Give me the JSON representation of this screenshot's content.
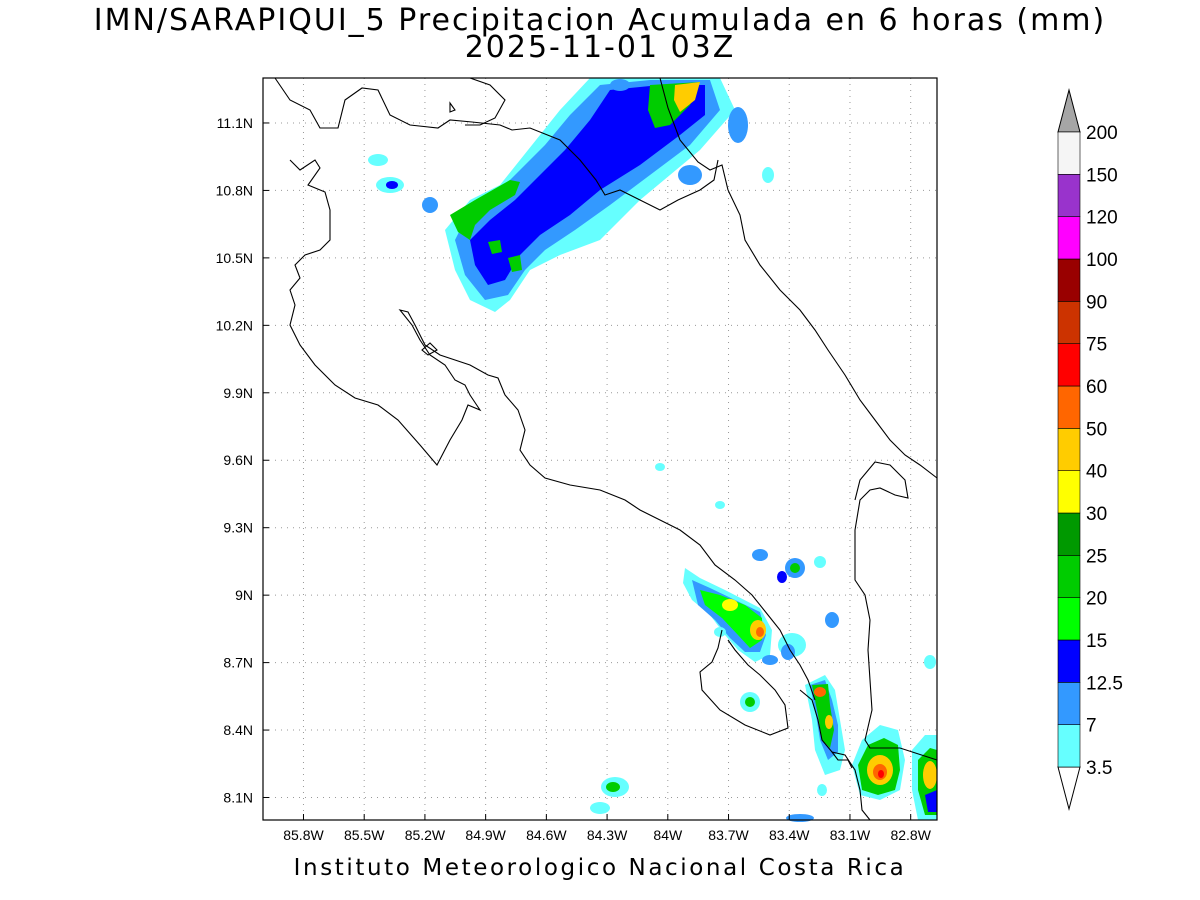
{
  "title": {
    "line1": "IMN/SARAPIQUI_5 Precipitacion Acumulada en 6 horas (mm)",
    "line2": "2025-11-01 03Z"
  },
  "footer": "Instituto Meteorologico Nacional Costa Rica",
  "map": {
    "lon_range": [
      -86.0,
      -82.67
    ],
    "lat_range": [
      8.0,
      11.3
    ],
    "grid": true,
    "lon_ticks": [
      {
        "value": -85.8,
        "label": "85.8W"
      },
      {
        "value": -85.5,
        "label": "85.5W"
      },
      {
        "value": -85.2,
        "label": "85.2W"
      },
      {
        "value": -84.9,
        "label": "84.9W"
      },
      {
        "value": -84.6,
        "label": "84.6W"
      },
      {
        "value": -84.3,
        "label": "84.3W"
      },
      {
        "value": -84.0,
        "label": "84W"
      },
      {
        "value": -83.7,
        "label": "83.7W"
      },
      {
        "value": -83.4,
        "label": "83.4W"
      },
      {
        "value": -83.1,
        "label": "83.1W"
      },
      {
        "value": -82.8,
        "label": "82.8W"
      }
    ],
    "lat_ticks": [
      {
        "value": 11.1,
        "label": "11.1N"
      },
      {
        "value": 10.8,
        "label": "10.8N"
      },
      {
        "value": 10.5,
        "label": "10.5N"
      },
      {
        "value": 10.2,
        "label": "10.2N"
      },
      {
        "value": 9.9,
        "label": "9.9N"
      },
      {
        "value": 9.6,
        "label": "9.6N"
      },
      {
        "value": 9.3,
        "label": "9.3N"
      },
      {
        "value": 9.0,
        "label": "9N"
      },
      {
        "value": 8.7,
        "label": "8.7N"
      },
      {
        "value": 8.4,
        "label": "8.4N"
      },
      {
        "value": 8.1,
        "label": "8.1N"
      }
    ]
  },
  "colorbar": {
    "levels": [
      {
        "label": "3.5",
        "color": "#66ffff"
      },
      {
        "label": "7",
        "color": "#3399ff"
      },
      {
        "label": "12.5",
        "color": "#0000ff"
      },
      {
        "label": "15",
        "color": "#00ff00"
      },
      {
        "label": "20",
        "color": "#00cc00"
      },
      {
        "label": "25",
        "color": "#009900"
      },
      {
        "label": "30",
        "color": "#ffff00"
      },
      {
        "label": "40",
        "color": "#ffcc00"
      },
      {
        "label": "50",
        "color": "#ff6600"
      },
      {
        "label": "60",
        "color": "#ff0000"
      },
      {
        "label": "75",
        "color": "#cc3300"
      },
      {
        "label": "90",
        "color": "#990000"
      },
      {
        "label": "100",
        "color": "#ff00ff"
      },
      {
        "label": "120",
        "color": "#9933cc"
      },
      {
        "label": "150",
        "color": "#f5f5f5"
      },
      {
        "label": "200",
        "color": "#a6a6a6"
      }
    ],
    "bottom_triangle_color": "#ffffff",
    "top_triangle_color": "#a6a6a6"
  }
}
